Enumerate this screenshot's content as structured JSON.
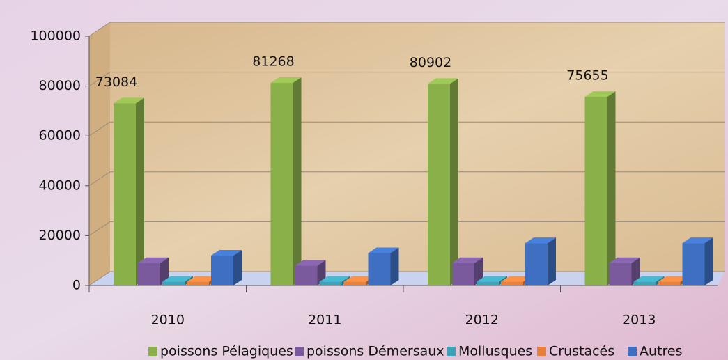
{
  "chart_data": {
    "type": "bar3d",
    "categories": [
      "2010",
      "2011",
      "2012",
      "2013"
    ],
    "series": [
      {
        "name": "poissons Pélagiques",
        "color": "#8ab04a",
        "values": [
          73084,
          81268,
          80902,
          75655
        ]
      },
      {
        "name": "poissons Démersaux",
        "color": "#7a5a9c",
        "values": [
          9000,
          8000,
          9000,
          9000
        ]
      },
      {
        "name": "Mollusques",
        "color": "#3ca3b8",
        "values": [
          1500,
          1500,
          1500,
          1500
        ]
      },
      {
        "name": "Crustacés",
        "color": "#e8803a",
        "values": [
          1500,
          1500,
          1500,
          1500
        ]
      },
      {
        "name": "Autres",
        "color": "#3f6fc0",
        "values": [
          12000,
          13000,
          17000,
          17000
        ]
      }
    ],
    "data_labels_series": 0,
    "ylim": [
      0,
      100000
    ],
    "yticks": [
      0,
      20000,
      40000,
      60000,
      80000,
      100000
    ],
    "grid": true
  }
}
